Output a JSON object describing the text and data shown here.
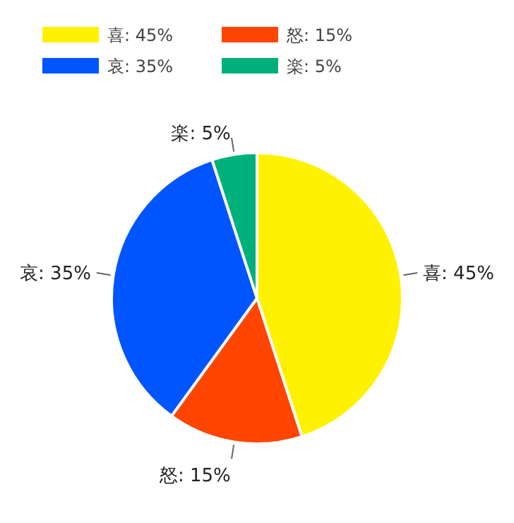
{
  "chart_data": {
    "type": "pie",
    "categories": [
      "喜",
      "怒",
      "哀",
      "楽"
    ],
    "values": [
      45,
      15,
      35,
      5
    ],
    "value_labels": [
      "45%",
      "15%",
      "35%",
      "5%"
    ],
    "colors": [
      "#fff200",
      "#ff4500",
      "#0055ff",
      "#00b07a"
    ],
    "legend": "top"
  }
}
